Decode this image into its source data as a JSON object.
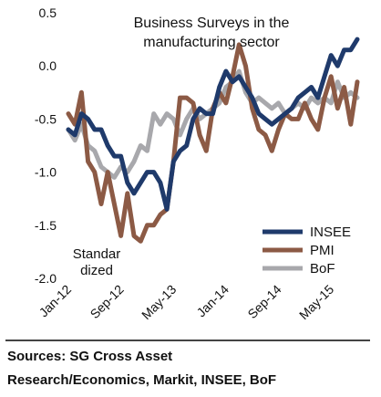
{
  "chart_data": {
    "type": "line",
    "title_lines": [
      "Business Surveys  in the",
      "manufacturing  sector"
    ],
    "annotation_lines": [
      "Standar",
      "dized"
    ],
    "y_ticks": [
      "0.5",
      "0.0",
      "-0.5",
      "-1.0",
      "-1.5",
      "-2.0"
    ],
    "x_ticks": [
      "Jan-12",
      "Sep-12",
      "May-13",
      "Jan-14",
      "Sep-14",
      "May-15"
    ],
    "ylim": [
      -2.0,
      0.5
    ],
    "legend_position": "bottom-right",
    "x": [
      "2012-01",
      "2012-02",
      "2012-03",
      "2012-04",
      "2012-05",
      "2012-06",
      "2012-07",
      "2012-08",
      "2012-09",
      "2012-10",
      "2012-11",
      "2012-12",
      "2013-01",
      "2013-02",
      "2013-03",
      "2013-04",
      "2013-05",
      "2013-06",
      "2013-07",
      "2013-08",
      "2013-09",
      "2013-10",
      "2013-11",
      "2013-12",
      "2014-01",
      "2014-02",
      "2014-03",
      "2014-04",
      "2014-05",
      "2014-06",
      "2014-07",
      "2014-08",
      "2014-09",
      "2014-10",
      "2014-11",
      "2014-12",
      "2015-01",
      "2015-02",
      "2015-03",
      "2015-04",
      "2015-05",
      "2015-06",
      "2015-07",
      "2015-08",
      "2015-09"
    ],
    "series": [
      {
        "name": "INSEE",
        "color": "#1f3a6b",
        "values": [
          -0.6,
          -0.65,
          -0.45,
          -0.5,
          -0.6,
          -0.6,
          -0.75,
          -0.85,
          -0.85,
          -1.1,
          -1.2,
          -1.1,
          -1.0,
          -1.0,
          -1.1,
          -1.35,
          -0.9,
          -0.8,
          -0.75,
          -0.5,
          -0.4,
          -0.45,
          -0.45,
          -0.2,
          -0.05,
          -0.15,
          -0.1,
          -0.2,
          -0.3,
          -0.45,
          -0.5,
          -0.55,
          -0.5,
          -0.45,
          -0.4,
          -0.3,
          -0.25,
          -0.2,
          -0.3,
          -0.1,
          0.1,
          0.0,
          0.15,
          0.15,
          0.25
        ]
      },
      {
        "name": "PMI",
        "color": "#8c5a45",
        "values": [
          -0.45,
          -0.55,
          -0.25,
          -0.9,
          -1.0,
          -1.3,
          -1.0,
          -1.3,
          -1.6,
          -1.2,
          -1.6,
          -1.65,
          -1.5,
          -1.5,
          -1.4,
          -1.35,
          -0.9,
          -0.3,
          -0.3,
          -0.35,
          -0.65,
          -0.8,
          -0.4,
          -0.25,
          -0.35,
          -0.1,
          0.2,
          0.0,
          -0.4,
          -0.6,
          -0.65,
          -0.8,
          -0.6,
          -0.45,
          -0.5,
          -0.5,
          -0.35,
          -0.5,
          -0.6,
          -0.3,
          -0.1,
          -0.4,
          -0.2,
          -0.55,
          -0.15
        ]
      },
      {
        "name": "BoF",
        "color": "#a8a8ac",
        "values": [
          -0.6,
          -0.7,
          -0.55,
          -0.75,
          -0.8,
          -0.95,
          -1.0,
          -1.05,
          -0.95,
          -1.0,
          -0.9,
          -0.75,
          -0.8,
          -0.45,
          -0.55,
          -0.45,
          -0.5,
          -0.65,
          -0.5,
          -0.4,
          -0.5,
          -0.45,
          -0.4,
          -0.35,
          -0.2,
          -0.15,
          -0.05,
          -0.25,
          -0.35,
          -0.3,
          -0.35,
          -0.4,
          -0.35,
          -0.45,
          -0.4,
          -0.35,
          -0.4,
          -0.3,
          -0.35,
          -0.3,
          -0.35,
          -0.15,
          -0.3,
          -0.25,
          -0.3
        ]
      }
    ]
  },
  "footer": {
    "line1": "Sources: SG Cross Asset",
    "line2": "Research/Economics, Markit, INSEE, BoF"
  }
}
